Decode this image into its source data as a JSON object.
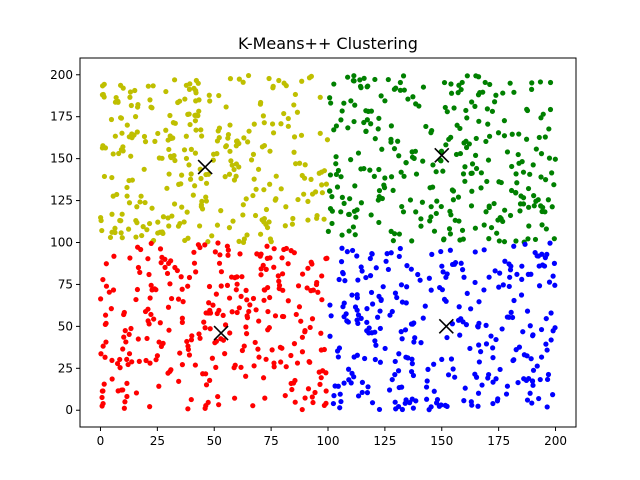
{
  "chart_data": {
    "type": "scatter",
    "title": "K-Means++ Clustering",
    "xlabel": "",
    "ylabel": "",
    "xlim": [
      -9,
      209
    ],
    "ylim": [
      -10,
      210
    ],
    "xticks": [
      0,
      25,
      50,
      75,
      100,
      125,
      150,
      175,
      200
    ],
    "yticks": [
      0,
      25,
      50,
      75,
      100,
      125,
      150,
      175,
      200
    ],
    "grid": false,
    "series": [
      {
        "color": "#bfbf00",
        "x_range": [
          0,
          100
        ],
        "y_range": [
          100,
          200
        ],
        "count": 300,
        "seed": 11
      },
      {
        "color": "#008000",
        "x_range": [
          100,
          200
        ],
        "y_range": [
          100,
          200
        ],
        "count": 300,
        "seed": 23
      },
      {
        "color": "#ff0000",
        "x_range": [
          0,
          100
        ],
        "y_range": [
          0,
          100
        ],
        "count": 300,
        "seed": 37
      },
      {
        "color": "#0000ff",
        "x_range": [
          100,
          200
        ],
        "y_range": [
          0,
          100
        ],
        "count": 300,
        "seed": 53
      }
    ],
    "centroids": [
      {
        "x": 46,
        "y": 145
      },
      {
        "x": 150,
        "y": 152
      },
      {
        "x": 53,
        "y": 46
      },
      {
        "x": 152,
        "y": 50
      }
    ],
    "centroid_marker": "x",
    "centroid_color": "#000000"
  }
}
